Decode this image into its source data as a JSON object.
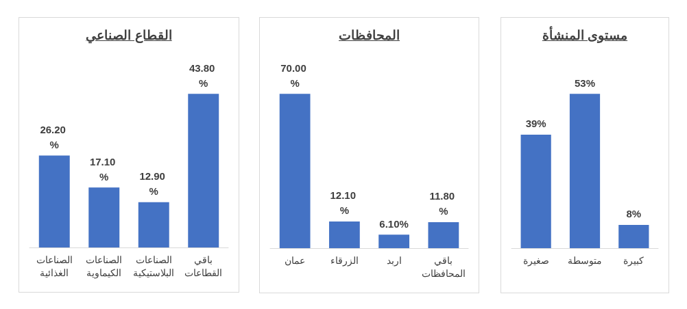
{
  "chart_data": [
    {
      "type": "bar",
      "title": "القطاع الصناعي",
      "categories": [
        "الصناعات الغذائية",
        "الصناعات الكيماوية",
        "الصناعات البلاستيكية",
        "باقي القطاعات"
      ],
      "values": [
        26.2,
        17.1,
        12.9,
        43.8
      ],
      "value_labels": [
        "26.20 %",
        "17.10 %",
        "12.90 %",
        "43.80 %"
      ],
      "color": "#4472c4"
    },
    {
      "type": "bar",
      "title": "المحافظات",
      "categories": [
        "عمان",
        "الزرقاء",
        "اربد",
        "باقي المحافظات"
      ],
      "values": [
        70.0,
        12.1,
        6.1,
        11.8
      ],
      "value_labels": [
        "70.00 %",
        "12.10 %",
        "6.10%",
        "11.80 %"
      ],
      "color": "#4472c4"
    },
    {
      "type": "bar",
      "title": "مستوى المنشأة",
      "categories": [
        "صغيرة",
        "متوسطة",
        "كبيرة"
      ],
      "values": [
        39,
        53,
        8
      ],
      "value_labels": [
        "39%",
        "53%",
        "8%"
      ],
      "color": "#4472c4"
    }
  ]
}
